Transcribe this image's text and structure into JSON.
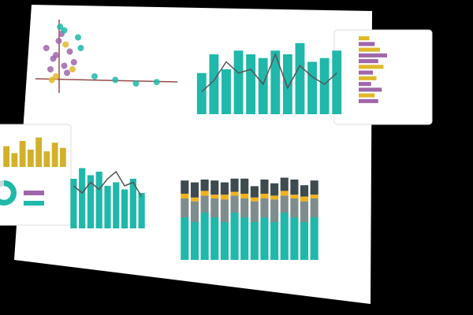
{
  "chart_data": [
    {
      "type": "scatter",
      "xlim": [
        0,
        100
      ],
      "ylim": [
        0,
        100
      ],
      "series": [
        {
          "color": "#a066aa",
          "x": [
            5,
            10,
            14,
            18,
            22,
            8,
            16,
            25,
            12,
            20
          ],
          "values": [
            60,
            45,
            70,
            35,
            55,
            30,
            80,
            40,
            50,
            25
          ]
        },
        {
          "color": "#1fb8aa",
          "x": [
            15,
            28,
            40,
            55,
            70,
            85,
            30,
            18
          ],
          "values": [
            90,
            75,
            20,
            15,
            10,
            12,
            60,
            85
          ]
        },
        {
          "color": "#e0b92a",
          "x": [
            12,
            19,
            24,
            9
          ],
          "values": [
            20,
            65,
            30,
            15
          ]
        }
      ]
    },
    {
      "type": "bar",
      "ylim": [
        0,
        100
      ],
      "series": [
        {
          "color": "#1fb8aa",
          "values": [
            55,
            80,
            60,
            85,
            80,
            75,
            85,
            80,
            95,
            70,
            75,
            85
          ]
        },
        {
          "color": "#555555",
          "kind": "line",
          "values": [
            30,
            45,
            70,
            55,
            60,
            40,
            80,
            35,
            65,
            50,
            40,
            55
          ]
        }
      ]
    },
    {
      "type": "bar",
      "ylim": [
        0,
        100
      ],
      "series": [
        {
          "color": "#1fb8aa",
          "values": [
            70,
            85,
            75,
            80,
            60,
            65,
            55,
            70,
            50
          ]
        },
        {
          "color": "#555555",
          "kind": "line",
          "values": [
            60,
            50,
            65,
            55,
            70,
            80,
            60,
            65,
            45
          ]
        }
      ]
    },
    {
      "type": "stacked_bar",
      "ylim": [
        0,
        100
      ],
      "series": [
        {
          "color": "#1fb8aa",
          "values": [
            45,
            40,
            50,
            45,
            40,
            50,
            45,
            40,
            45,
            40,
            50,
            45,
            40,
            45
          ]
        },
        {
          "color": "#7f8c8d",
          "values": [
            20,
            22,
            18,
            20,
            24,
            18,
            20,
            22,
            20,
            24,
            18,
            20,
            22,
            20
          ]
        },
        {
          "color": "#f2b21b",
          "values": [
            5,
            4,
            5,
            4,
            5,
            4,
            5,
            4,
            5,
            4,
            5,
            4,
            5,
            4
          ]
        },
        {
          "color": "#3d4a4f",
          "values": [
            14,
            16,
            12,
            15,
            13,
            14,
            16,
            12,
            15,
            13,
            14,
            16,
            12,
            15
          ]
        }
      ]
    },
    {
      "type": "hbar",
      "xlim": [
        0,
        100
      ],
      "values": [
        30,
        45,
        60,
        80,
        55,
        70,
        40,
        50,
        35,
        65,
        45,
        55
      ],
      "colors": [
        "#e0b92a",
        "#a066aa",
        "#e0b92a",
        "#a066aa",
        "#a066aa",
        "#e0b92a",
        "#a066aa",
        "#e0b92a",
        "#a066aa",
        "#a066aa",
        "#e0b92a",
        "#a066aa"
      ]
    },
    {
      "type": "bar",
      "ylim": [
        0,
        100
      ],
      "series": [
        {
          "color": "#d4b02a",
          "values": [
            60,
            40,
            75,
            50,
            85,
            45,
            70,
            55
          ]
        }
      ]
    },
    {
      "type": "pie",
      "values": [
        65,
        35
      ],
      "colors": [
        "#1fb8aa",
        "#cfd8dc"
      ]
    }
  ]
}
